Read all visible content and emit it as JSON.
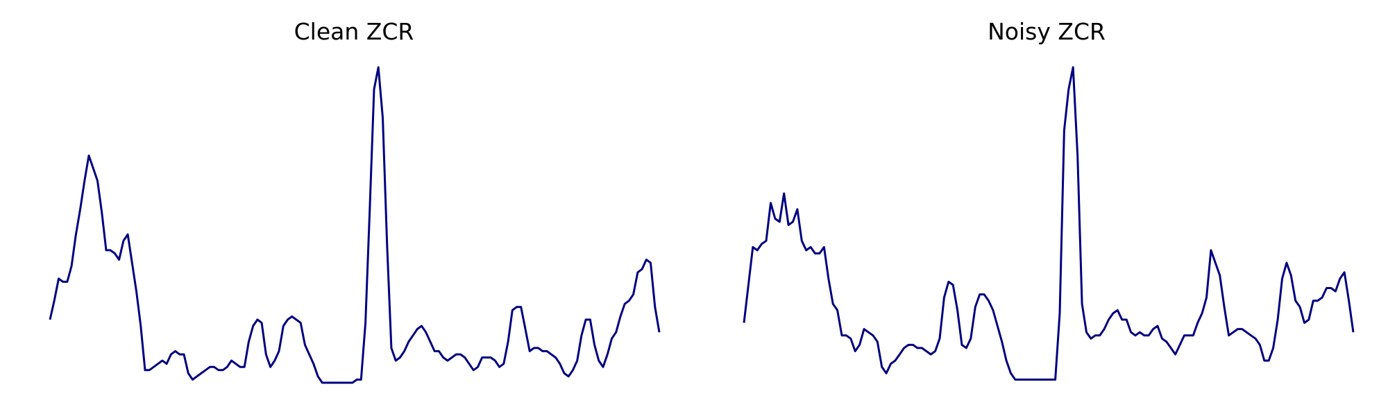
{
  "chart_data": [
    {
      "type": "line",
      "title": "Clean ZCR",
      "xlabel": "",
      "ylabel": "",
      "axes": "off",
      "grid": false,
      "color": "#000080",
      "ylim": [
        0,
        1
      ],
      "values": [
        0.2,
        0.26,
        0.33,
        0.32,
        0.32,
        0.37,
        0.47,
        0.55,
        0.64,
        0.72,
        0.68,
        0.64,
        0.54,
        0.42,
        0.42,
        0.41,
        0.39,
        0.45,
        0.47,
        0.38,
        0.29,
        0.18,
        0.04,
        0.04,
        0.05,
        0.06,
        0.07,
        0.06,
        0.09,
        0.1,
        0.09,
        0.09,
        0.03,
        0.01,
        0.02,
        0.03,
        0.04,
        0.05,
        0.05,
        0.04,
        0.04,
        0.05,
        0.07,
        0.06,
        0.05,
        0.05,
        0.13,
        0.18,
        0.2,
        0.19,
        0.09,
        0.05,
        0.07,
        0.1,
        0.18,
        0.2,
        0.21,
        0.2,
        0.19,
        0.12,
        0.09,
        0.06,
        0.02,
        0.0,
        0.0,
        0.0,
        0.0,
        0.0,
        0.0,
        0.0,
        0.0,
        0.01,
        0.01,
        0.19,
        0.55,
        0.93,
        1.0,
        0.84,
        0.44,
        0.11,
        0.07,
        0.08,
        0.1,
        0.13,
        0.15,
        0.17,
        0.18,
        0.16,
        0.13,
        0.1,
        0.1,
        0.08,
        0.07,
        0.08,
        0.09,
        0.09,
        0.08,
        0.06,
        0.04,
        0.05,
        0.08,
        0.08,
        0.08,
        0.07,
        0.05,
        0.06,
        0.13,
        0.23,
        0.24,
        0.24,
        0.17,
        0.1,
        0.11,
        0.11,
        0.1,
        0.1,
        0.09,
        0.08,
        0.06,
        0.03,
        0.02,
        0.04,
        0.07,
        0.15,
        0.2,
        0.2,
        0.12,
        0.07,
        0.05,
        0.09,
        0.14,
        0.16,
        0.21,
        0.25,
        0.26,
        0.28,
        0.35,
        0.36,
        0.39,
        0.38,
        0.24,
        0.16
      ]
    },
    {
      "type": "line",
      "title": "Noisy ZCR",
      "xlabel": "",
      "ylabel": "",
      "axes": "off",
      "grid": false,
      "color": "#000080",
      "ylim": [
        0,
        1
      ],
      "values": [
        0.19,
        0.31,
        0.43,
        0.42,
        0.44,
        0.45,
        0.57,
        0.52,
        0.51,
        0.6,
        0.5,
        0.51,
        0.55,
        0.45,
        0.42,
        0.43,
        0.41,
        0.41,
        0.43,
        0.33,
        0.25,
        0.23,
        0.15,
        0.15,
        0.14,
        0.1,
        0.12,
        0.17,
        0.16,
        0.15,
        0.13,
        0.05,
        0.03,
        0.06,
        0.07,
        0.09,
        0.11,
        0.12,
        0.12,
        0.11,
        0.11,
        0.1,
        0.09,
        0.1,
        0.14,
        0.27,
        0.32,
        0.31,
        0.23,
        0.12,
        0.11,
        0.14,
        0.24,
        0.28,
        0.28,
        0.26,
        0.23,
        0.18,
        0.13,
        0.07,
        0.03,
        0.01,
        0.01,
        0.01,
        0.01,
        0.01,
        0.01,
        0.01,
        0.01,
        0.01,
        0.01,
        0.22,
        0.8,
        0.93,
        1.0,
        0.72,
        0.25,
        0.16,
        0.14,
        0.15,
        0.15,
        0.17,
        0.2,
        0.22,
        0.23,
        0.2,
        0.2,
        0.16,
        0.15,
        0.16,
        0.15,
        0.15,
        0.17,
        0.18,
        0.14,
        0.13,
        0.11,
        0.09,
        0.12,
        0.15,
        0.15,
        0.15,
        0.19,
        0.22,
        0.27,
        0.42,
        0.38,
        0.34,
        0.24,
        0.15,
        0.16,
        0.17,
        0.17,
        0.16,
        0.15,
        0.14,
        0.12,
        0.07,
        0.07,
        0.11,
        0.2,
        0.33,
        0.38,
        0.34,
        0.26,
        0.24,
        0.19,
        0.2,
        0.26,
        0.26,
        0.27,
        0.3,
        0.3,
        0.29,
        0.33,
        0.35,
        0.26,
        0.16
      ]
    }
  ]
}
